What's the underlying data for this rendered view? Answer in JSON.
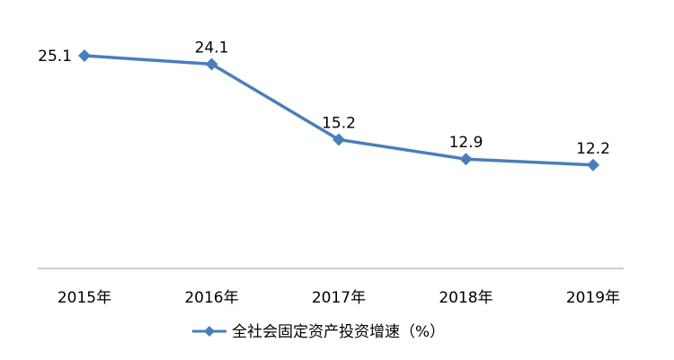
{
  "chart_data": {
    "type": "line",
    "title": "",
    "xlabel": "",
    "ylabel": "",
    "categories": [
      "2015年",
      "2016年",
      "2017年",
      "2018年",
      "2019年"
    ],
    "series": [
      {
        "name": "全社会固定资产投资增速（%）",
        "values": [
          25.1,
          24.1,
          15.2,
          12.9,
          12.2
        ],
        "data_labels": [
          "25.1",
          "24.1",
          "15.2",
          "12.9",
          "12.2"
        ],
        "color": "#4a7ebb",
        "marker": "diamond"
      }
    ],
    "ylim": [
      0,
      30
    ],
    "grid": false,
    "y_axis_visible": false,
    "legend_position": "bottom"
  }
}
